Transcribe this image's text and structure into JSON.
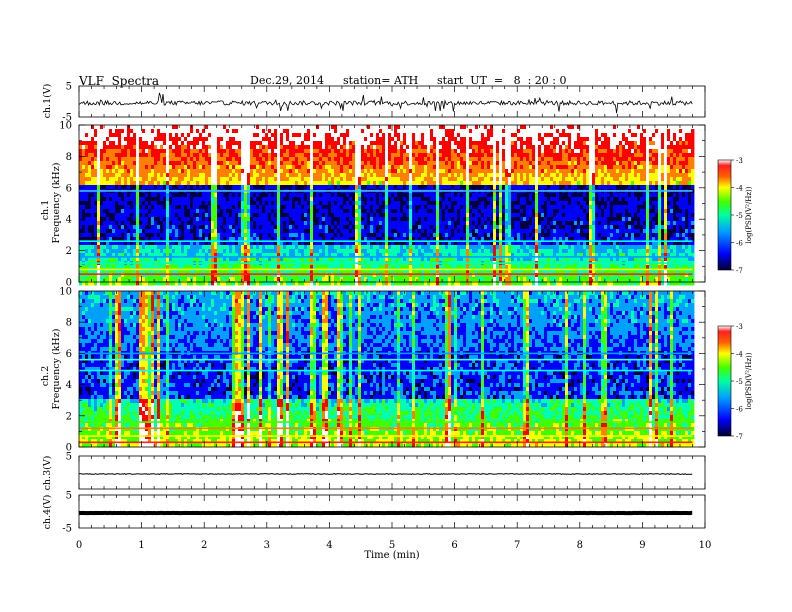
{
  "header": {
    "title": "VLF  Spectra",
    "date": "Dec.29, 2014",
    "station": "station= ATH",
    "start_ut": "start  UT  =   8  : 20 : 0"
  },
  "chart_data": [
    {
      "type": "line",
      "panel": "ch1-waveform",
      "ylabel": "ch.1(V)",
      "ylim": [
        -5,
        5
      ],
      "y_ticks": [
        "5",
        "-5"
      ],
      "x_range_min": [
        0,
        9.8
      ],
      "trace": "noisy waveform centered near 0 V with impulsive spikes up to about ±4 V"
    },
    {
      "type": "heatmap",
      "panel": "ch1-spectrogram",
      "channel_label": "ch.1",
      "ylabel": "Frequency  (kHz)",
      "ylim": [
        0,
        10
      ],
      "y_ticks": [
        "0",
        "2",
        "4",
        "6",
        "8",
        "10"
      ],
      "colorbar": {
        "label": "log(PSD(V²/Hz))",
        "range": [
          -7,
          -3
        ],
        "ticks": [
          "-3",
          "-4",
          "-5",
          "-6",
          "-7"
        ]
      }
    },
    {
      "type": "heatmap",
      "panel": "ch2-spectrogram",
      "channel_label": "ch.2",
      "ylabel": "Frequency  (kHz)",
      "ylim": [
        0,
        10
      ],
      "y_ticks": [
        "0",
        "2",
        "4",
        "6",
        "8",
        "10"
      ],
      "colorbar": {
        "label": "log(PSD(V²/Hz))",
        "range": [
          -7,
          -3
        ],
        "ticks": [
          "-3",
          "-4",
          "-5",
          "-6",
          "-7"
        ]
      }
    },
    {
      "type": "line",
      "panel": "ch3-waveform",
      "ylabel": "ch.3(V)",
      "ylim": [
        -5,
        5
      ],
      "y_ticks": [
        "5"
      ],
      "trace": "nearly flat trace near 0 V"
    },
    {
      "type": "line",
      "panel": "ch4-waveform",
      "ylabel": "ch.4(V)",
      "ylim": [
        -5,
        5
      ],
      "y_ticks": [
        "5",
        "-5"
      ],
      "trace": "thick flat trace near 0 V"
    }
  ],
  "x_axis": {
    "label": "Time  (min)",
    "range": [
      0,
      10
    ],
    "ticks": [
      "0",
      "1",
      "2",
      "3",
      "4",
      "5",
      "6",
      "7",
      "8",
      "9",
      "10"
    ]
  },
  "colors": {
    "colormap": [
      "#000040",
      "#0000ff",
      "#00a0ff",
      "#00ffb0",
      "#40ff00",
      "#ffff00",
      "#ff8000",
      "#ff0000",
      "#ffffff"
    ]
  }
}
